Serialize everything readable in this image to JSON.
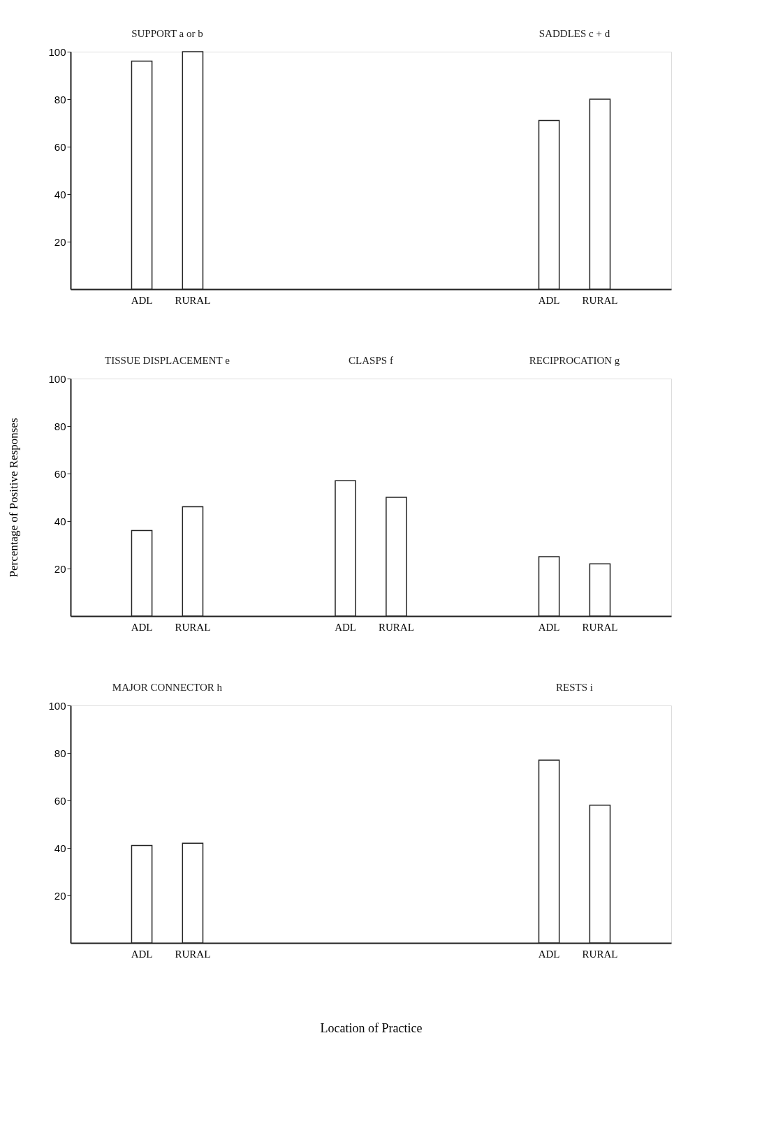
{
  "chart_data": [
    {
      "type": "bar",
      "categories": [
        null,
        "ADL",
        "RURAL",
        null,
        null,
        null,
        null,
        null,
        null,
        "ADL",
        "RURAL",
        null
      ],
      "values": [
        null,
        96,
        100,
        null,
        null,
        null,
        null,
        null,
        null,
        71,
        80,
        null
      ],
      "color": "#ffffff",
      "ylim": [
        0,
        100
      ],
      "yticks": [
        20,
        40,
        60,
        80,
        100
      ],
      "grid": false,
      "annotations": [
        "SUPPORT a or b",
        "SADDLES c + d"
      ]
    },
    {
      "type": "bar",
      "categories": [
        null,
        "ADL",
        "RURAL",
        null,
        null,
        "ADL",
        "RURAL",
        null,
        null,
        "ADL",
        "RURAL",
        null
      ],
      "values": [
        null,
        36,
        46,
        null,
        null,
        57,
        50,
        null,
        null,
        25,
        22,
        null
      ],
      "color": "#ffffff",
      "ylim": [
        0,
        100
      ],
      "yticks": [
        20,
        40,
        60,
        80,
        100
      ],
      "grid": false,
      "ylabel": "Percentage of Positive Responses",
      "annotations": [
        "TISSUE DISPLACEMENT e",
        "CLASPS f",
        "RECIPROCATION g"
      ]
    },
    {
      "type": "bar",
      "categories": [
        null,
        "ADL",
        "RURAL",
        null,
        null,
        null,
        null,
        null,
        null,
        "ADL",
        "RURAL",
        null
      ],
      "values": [
        null,
        41,
        42,
        null,
        null,
        null,
        null,
        null,
        null,
        77,
        58,
        null
      ],
      "color": "#ffffff",
      "ylim": [
        0,
        100
      ],
      "yticks": [
        20,
        40,
        60,
        80,
        100
      ],
      "grid": false,
      "xlabel": "Location of Practice",
      "annotations": [
        "MAJOR CONNECTOR h",
        "RESTS i"
      ]
    }
  ]
}
